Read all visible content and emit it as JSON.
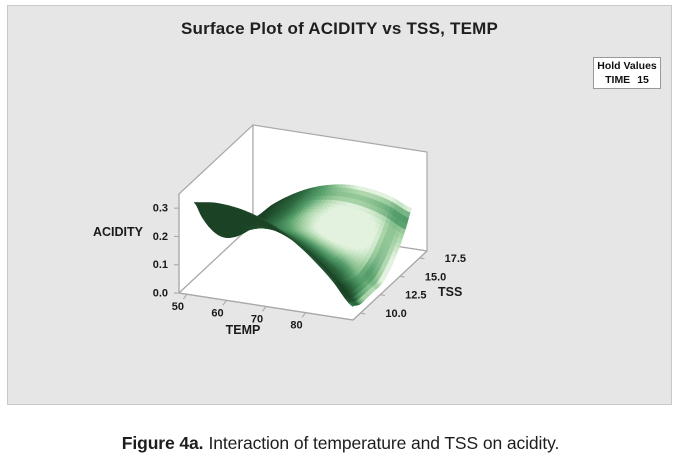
{
  "panel": {
    "title": "Surface Plot of ACIDITY vs TSS, TEMP",
    "background": "#e6e6e6",
    "border_color": "#c9c9c9"
  },
  "hold_values": {
    "header": "Hold Values",
    "label": "TIME",
    "value": "15"
  },
  "caption": {
    "label": "Figure 4a.",
    "text": "Interaction of temperature and TSS on acidity."
  },
  "chart_data": {
    "type": "surface3d",
    "title": "Surface Plot of ACIDITY vs TSS, TEMP",
    "x_axis": {
      "label": "TEMP",
      "ticks": [
        50,
        60,
        70,
        80
      ],
      "data_range": [
        50,
        90
      ]
    },
    "y_axis": {
      "label": "TSS",
      "ticks": [
        "10.0",
        "12.5",
        "15.0",
        "17.5"
      ],
      "data_range": [
        10,
        17.5
      ]
    },
    "z_axis": {
      "label": "ACIDITY",
      "ticks": [
        "0.0",
        "0.1",
        "0.2",
        "0.3"
      ],
      "data_range": [
        0,
        0.35
      ]
    },
    "hold": {
      "label": "TIME",
      "value": 15
    },
    "colors": {
      "wall_fill": "#ffffff",
      "frame": "#a9a9a9",
      "surface_dark": "#1c4326",
      "surface_mid": "#57a06c",
      "surface_light": "#e2f2de"
    },
    "grid": {
      "temp": [
        50,
        55,
        60,
        65,
        70,
        75,
        80,
        85,
        90
      ],
      "tss": [
        10.0,
        10.94,
        11.88,
        12.81,
        13.75,
        14.69,
        15.63,
        16.56,
        17.5
      ],
      "acidity": [
        [
          0.3,
          0.309,
          0.305,
          0.289,
          0.26,
          0.219,
          0.165,
          0.099,
          0.02
        ],
        [
          0.227,
          0.242,
          0.245,
          0.235,
          0.212,
          0.177,
          0.13,
          0.07,
          0.003
        ],
        [
          0.166,
          0.188,
          0.196,
          0.193,
          0.176,
          0.148,
          0.106,
          0.053,
          0.003
        ],
        [
          0.117,
          0.145,
          0.16,
          0.162,
          0.152,
          0.13,
          0.095,
          0.047,
          0.003
        ],
        [
          0.08,
          0.114,
          0.135,
          0.144,
          0.14,
          0.124,
          0.095,
          0.054,
          0.004
        ],
        [
          0.055,
          0.095,
          0.122,
          0.137,
          0.14,
          0.13,
          0.107,
          0.072,
          0.025
        ],
        [
          0.041,
          0.088,
          0.121,
          0.143,
          0.151,
          0.148,
          0.131,
          0.103,
          0.061
        ],
        [
          0.04,
          0.092,
          0.132,
          0.16,
          0.175,
          0.177,
          0.167,
          0.145,
          0.11
        ],
        [
          0.05,
          0.109,
          0.155,
          0.189,
          0.21,
          0.219,
          0.215,
          0.199,
          0.17
        ]
      ]
    }
  }
}
